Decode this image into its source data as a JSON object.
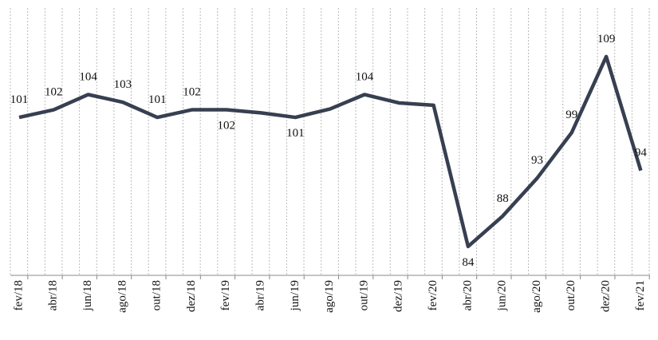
{
  "chart_data": {
    "type": "line",
    "categories": [
      "fev/18",
      "abr/18",
      "jun/18",
      "ago/18",
      "out/18",
      "dez/18",
      "fev/19",
      "abr/19",
      "jun/19",
      "ago/19",
      "out/19",
      "dez/19",
      "fev/20",
      "abr/20",
      "jun/20",
      "ago/20",
      "out/20",
      "dez/20",
      "fev/21"
    ],
    "series": [
      {
        "color": "#373f51",
        "values": [
          101,
          102,
          104,
          103,
          101,
          102,
          102,
          101.6,
          101,
          102.1,
          104,
          102.9,
          102.6,
          84,
          88,
          93,
          99,
          109,
          94
        ],
        "value_labels": [
          "101",
          "102",
          "104",
          "103",
          "101",
          "102",
          "102",
          null,
          "101",
          null,
          "104",
          null,
          null,
          "84",
          "88",
          "93",
          "99",
          "109",
          "94"
        ]
      }
    ],
    "ylim": [
      80.2,
      115.4
    ]
  }
}
